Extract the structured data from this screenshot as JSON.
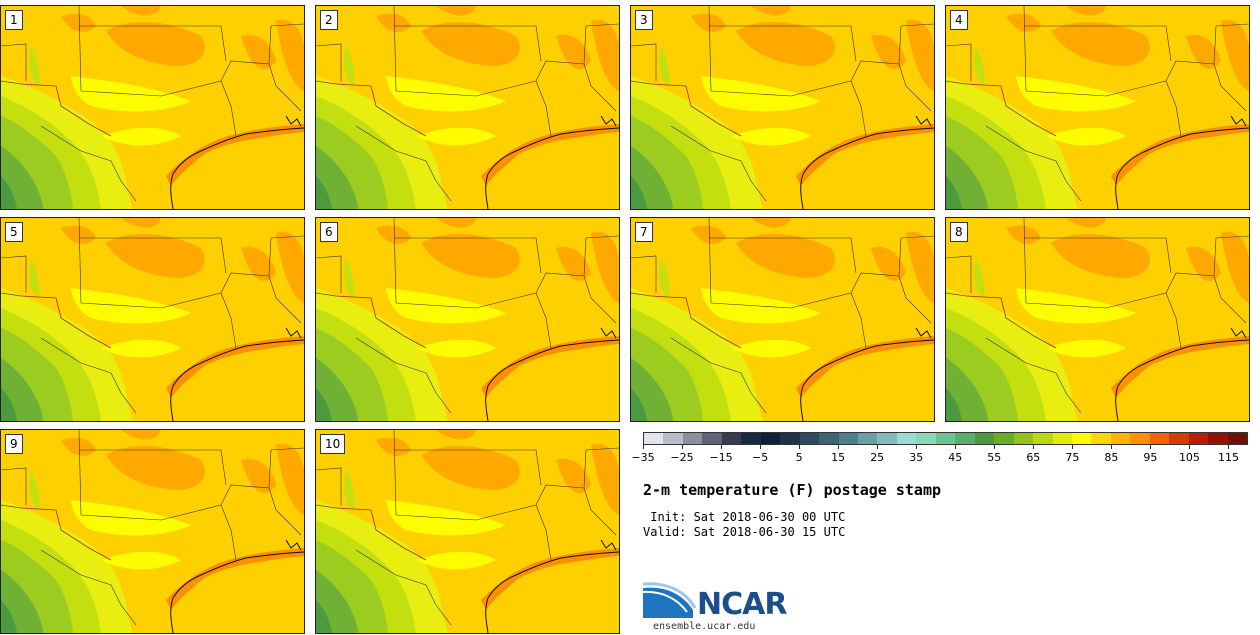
{
  "panels": [
    {
      "label": "1"
    },
    {
      "label": "2"
    },
    {
      "label": "3"
    },
    {
      "label": "4"
    },
    {
      "label": "5"
    },
    {
      "label": "6"
    },
    {
      "label": "7"
    },
    {
      "label": "8"
    },
    {
      "label": "9"
    },
    {
      "label": "10"
    }
  ],
  "colorbar": {
    "colors": [
      "#e4e4ec",
      "#b9bcc8",
      "#8b8f9e",
      "#5f6375",
      "#343b52",
      "#1a2a44",
      "#10203a",
      "#203248",
      "#2f4a60",
      "#3d6272",
      "#507f8a",
      "#6b9ea6",
      "#80bbbf",
      "#99dcd4",
      "#8ad7b8",
      "#6cc494",
      "#5aae6e",
      "#4c9a3e",
      "#6aab2a",
      "#94c41c",
      "#bcd910",
      "#e2ec08",
      "#fdfd00",
      "#ffd700",
      "#ffb400",
      "#ff8e00",
      "#f26400",
      "#d83a00",
      "#b81e00",
      "#921206",
      "#6e1008"
    ],
    "tick_labels": [
      "−35",
      "−25",
      "−15",
      "−5",
      "5",
      "15",
      "25",
      "35",
      "45",
      "55",
      "65",
      "75",
      "85",
      "95",
      "105",
      "115"
    ]
  },
  "title": "2-m temperature (F) postage stamp",
  "init_line": " Init: Sat 2018-06-30 00 UTC",
  "valid_line": "Valid: Sat 2018-06-30 15 UTC",
  "logo": {
    "text": "NCAR",
    "url": "ensemble.ucar.edu"
  }
}
